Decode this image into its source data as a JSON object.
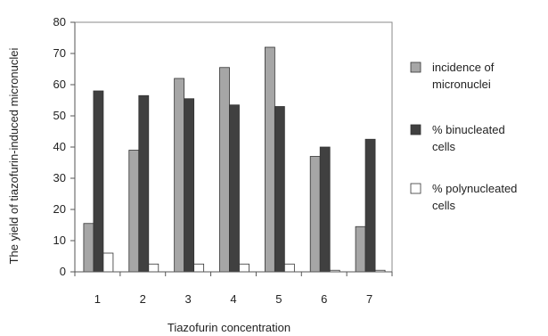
{
  "chart_data": {
    "type": "bar",
    "title": "",
    "xlabel": "Tiazofurin concentration",
    "ylabel": "The yield of tiazofurin-induced micronuclei",
    "ylim": [
      0,
      80
    ],
    "yticks": [
      0,
      10,
      20,
      30,
      40,
      50,
      60,
      70,
      80
    ],
    "grid": false,
    "legend_position": "right",
    "categories": [
      "1",
      "2",
      "3",
      "4",
      "5",
      "6",
      "7"
    ],
    "series": [
      {
        "name": "incidence of micronuclei",
        "name_lines": [
          "incidence of",
          "micronuclei"
        ],
        "color": "#a6a6a6",
        "values": [
          15.5,
          39,
          62,
          65.5,
          72,
          37,
          14.5
        ]
      },
      {
        "name": "% binucleated cells",
        "name_lines": [
          "% binucleated",
          "cells"
        ],
        "color": "#404040",
        "values": [
          58,
          56.5,
          55.5,
          53.5,
          53,
          40,
          42.5
        ]
      },
      {
        "name": "% polynucleated cells",
        "name_lines": [
          "% polynucleated",
          "cells"
        ],
        "color": "#ffffff",
        "values": [
          6,
          2.5,
          2.5,
          2.5,
          2.5,
          0.5,
          0.5
        ]
      }
    ]
  }
}
